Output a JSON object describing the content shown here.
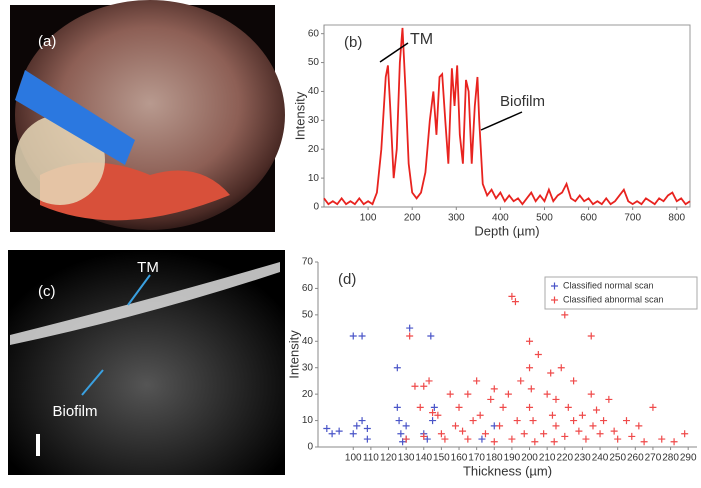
{
  "images": [
    {
      "label": "(a)"
    },
    {
      "label": "(c)",
      "annotations": [
        "TM",
        "Biofilm"
      ]
    }
  ],
  "chart_data": [
    {
      "type": "line",
      "label": "(b)",
      "x_label": "Depth (µm)",
      "y_label": "Intensity",
      "annotations": [
        "TM",
        "Biofilm"
      ],
      "xlim": [
        0,
        830
      ],
      "ylim": [
        0,
        63
      ],
      "xticks": [
        100,
        200,
        300,
        400,
        500,
        600,
        700,
        800
      ],
      "yticks": [
        0,
        10,
        20,
        30,
        40,
        50,
        60
      ],
      "x": [
        0,
        10,
        20,
        30,
        40,
        50,
        60,
        70,
        80,
        90,
        100,
        110,
        120,
        130,
        140,
        145,
        150,
        158,
        165,
        172,
        178,
        185,
        192,
        200,
        210,
        220,
        230,
        240,
        248,
        255,
        262,
        268,
        275,
        282,
        290,
        296,
        302,
        308,
        315,
        322,
        328,
        335,
        342,
        348,
        352,
        360,
        370,
        380,
        390,
        400,
        410,
        420,
        430,
        440,
        450,
        460,
        470,
        480,
        490,
        500,
        510,
        520,
        530,
        540,
        550,
        560,
        570,
        580,
        590,
        600,
        610,
        620,
        630,
        640,
        650,
        660,
        670,
        680,
        690,
        700,
        710,
        720,
        730,
        740,
        750,
        760,
        770,
        780,
        790,
        800,
        810,
        820,
        830
      ],
      "series": [
        {
          "name": "Intensity",
          "color": "#e8231f",
          "values": [
            3,
            1,
            2,
            1,
            3,
            1,
            2,
            1,
            3,
            1,
            2,
            1,
            5,
            20,
            45,
            49,
            35,
            10,
            20,
            50,
            62,
            40,
            15,
            5,
            3,
            5,
            12,
            30,
            40,
            25,
            45,
            46,
            30,
            15,
            48,
            35,
            49,
            25,
            15,
            44,
            40,
            15,
            35,
            45,
            30,
            8,
            4,
            6,
            3,
            5,
            2,
            4,
            2,
            3,
            1,
            3,
            5,
            2,
            4,
            2,
            6,
            2,
            4,
            5,
            8,
            3,
            2,
            4,
            2,
            3,
            1,
            2,
            1,
            3,
            1,
            2,
            4,
            6,
            2,
            1,
            2,
            1,
            3,
            2,
            1,
            3,
            2,
            4,
            5,
            2,
            3,
            1,
            2
          ]
        }
      ]
    },
    {
      "type": "scatter",
      "label": "(d)",
      "x_label": "Thickness (µm)",
      "y_label": "Intensity",
      "legend": "upper right",
      "xlim": [
        80,
        295
      ],
      "ylim": [
        0,
        70
      ],
      "xticks": [
        100,
        110,
        120,
        130,
        140,
        150,
        160,
        170,
        180,
        190,
        200,
        210,
        220,
        230,
        240,
        250,
        260,
        270,
        280,
        290
      ],
      "yticks": [
        0,
        10,
        20,
        30,
        40,
        50,
        60,
        70
      ],
      "series": [
        {
          "name": "Classified normal scan",
          "color": "#4a55c8",
          "x": [
            85,
            88,
            92,
            100,
            105,
            100,
            102,
            105,
            108,
            108,
            125,
            125,
            126,
            127,
            128,
            130,
            130,
            132,
            140,
            142,
            144,
            145,
            146,
            173,
            180
          ],
          "values": [
            7,
            5,
            6,
            42,
            42,
            5,
            8,
            10,
            7,
            3,
            30,
            15,
            10,
            5,
            2,
            8,
            3,
            45,
            5,
            3,
            42,
            10,
            15,
            3,
            8
          ]
        },
        {
          "name": "Classified abnormal scan",
          "color": "#ef4a4a",
          "x": [
            130,
            132,
            135,
            138,
            140,
            140,
            143,
            145,
            148,
            150,
            152,
            155,
            158,
            160,
            162,
            165,
            165,
            168,
            170,
            172,
            175,
            178,
            180,
            180,
            183,
            185,
            188,
            190,
            190,
            192,
            193,
            195,
            197,
            200,
            200,
            200,
            201,
            202,
            203,
            205,
            208,
            210,
            212,
            213,
            214,
            215,
            215,
            218,
            220,
            220,
            222,
            225,
            225,
            228,
            230,
            232,
            235,
            235,
            236,
            238,
            240,
            242,
            245,
            248,
            250,
            255,
            258,
            262,
            265,
            270,
            275,
            282,
            288
          ],
          "values": [
            3,
            42,
            23,
            15,
            23,
            4,
            25,
            13,
            12,
            5,
            3,
            20,
            8,
            15,
            6,
            20,
            3,
            10,
            25,
            12,
            5,
            18,
            22,
            2,
            8,
            15,
            20,
            57,
            3,
            55,
            10,
            25,
            5,
            40,
            30,
            15,
            22,
            10,
            2,
            35,
            5,
            20,
            28,
            12,
            2,
            8,
            18,
            30,
            50,
            4,
            15,
            10,
            25,
            6,
            12,
            3,
            42,
            20,
            8,
            14,
            5,
            10,
            18,
            6,
            3,
            10,
            4,
            8,
            2,
            15,
            3,
            2,
            5
          ]
        }
      ]
    }
  ]
}
